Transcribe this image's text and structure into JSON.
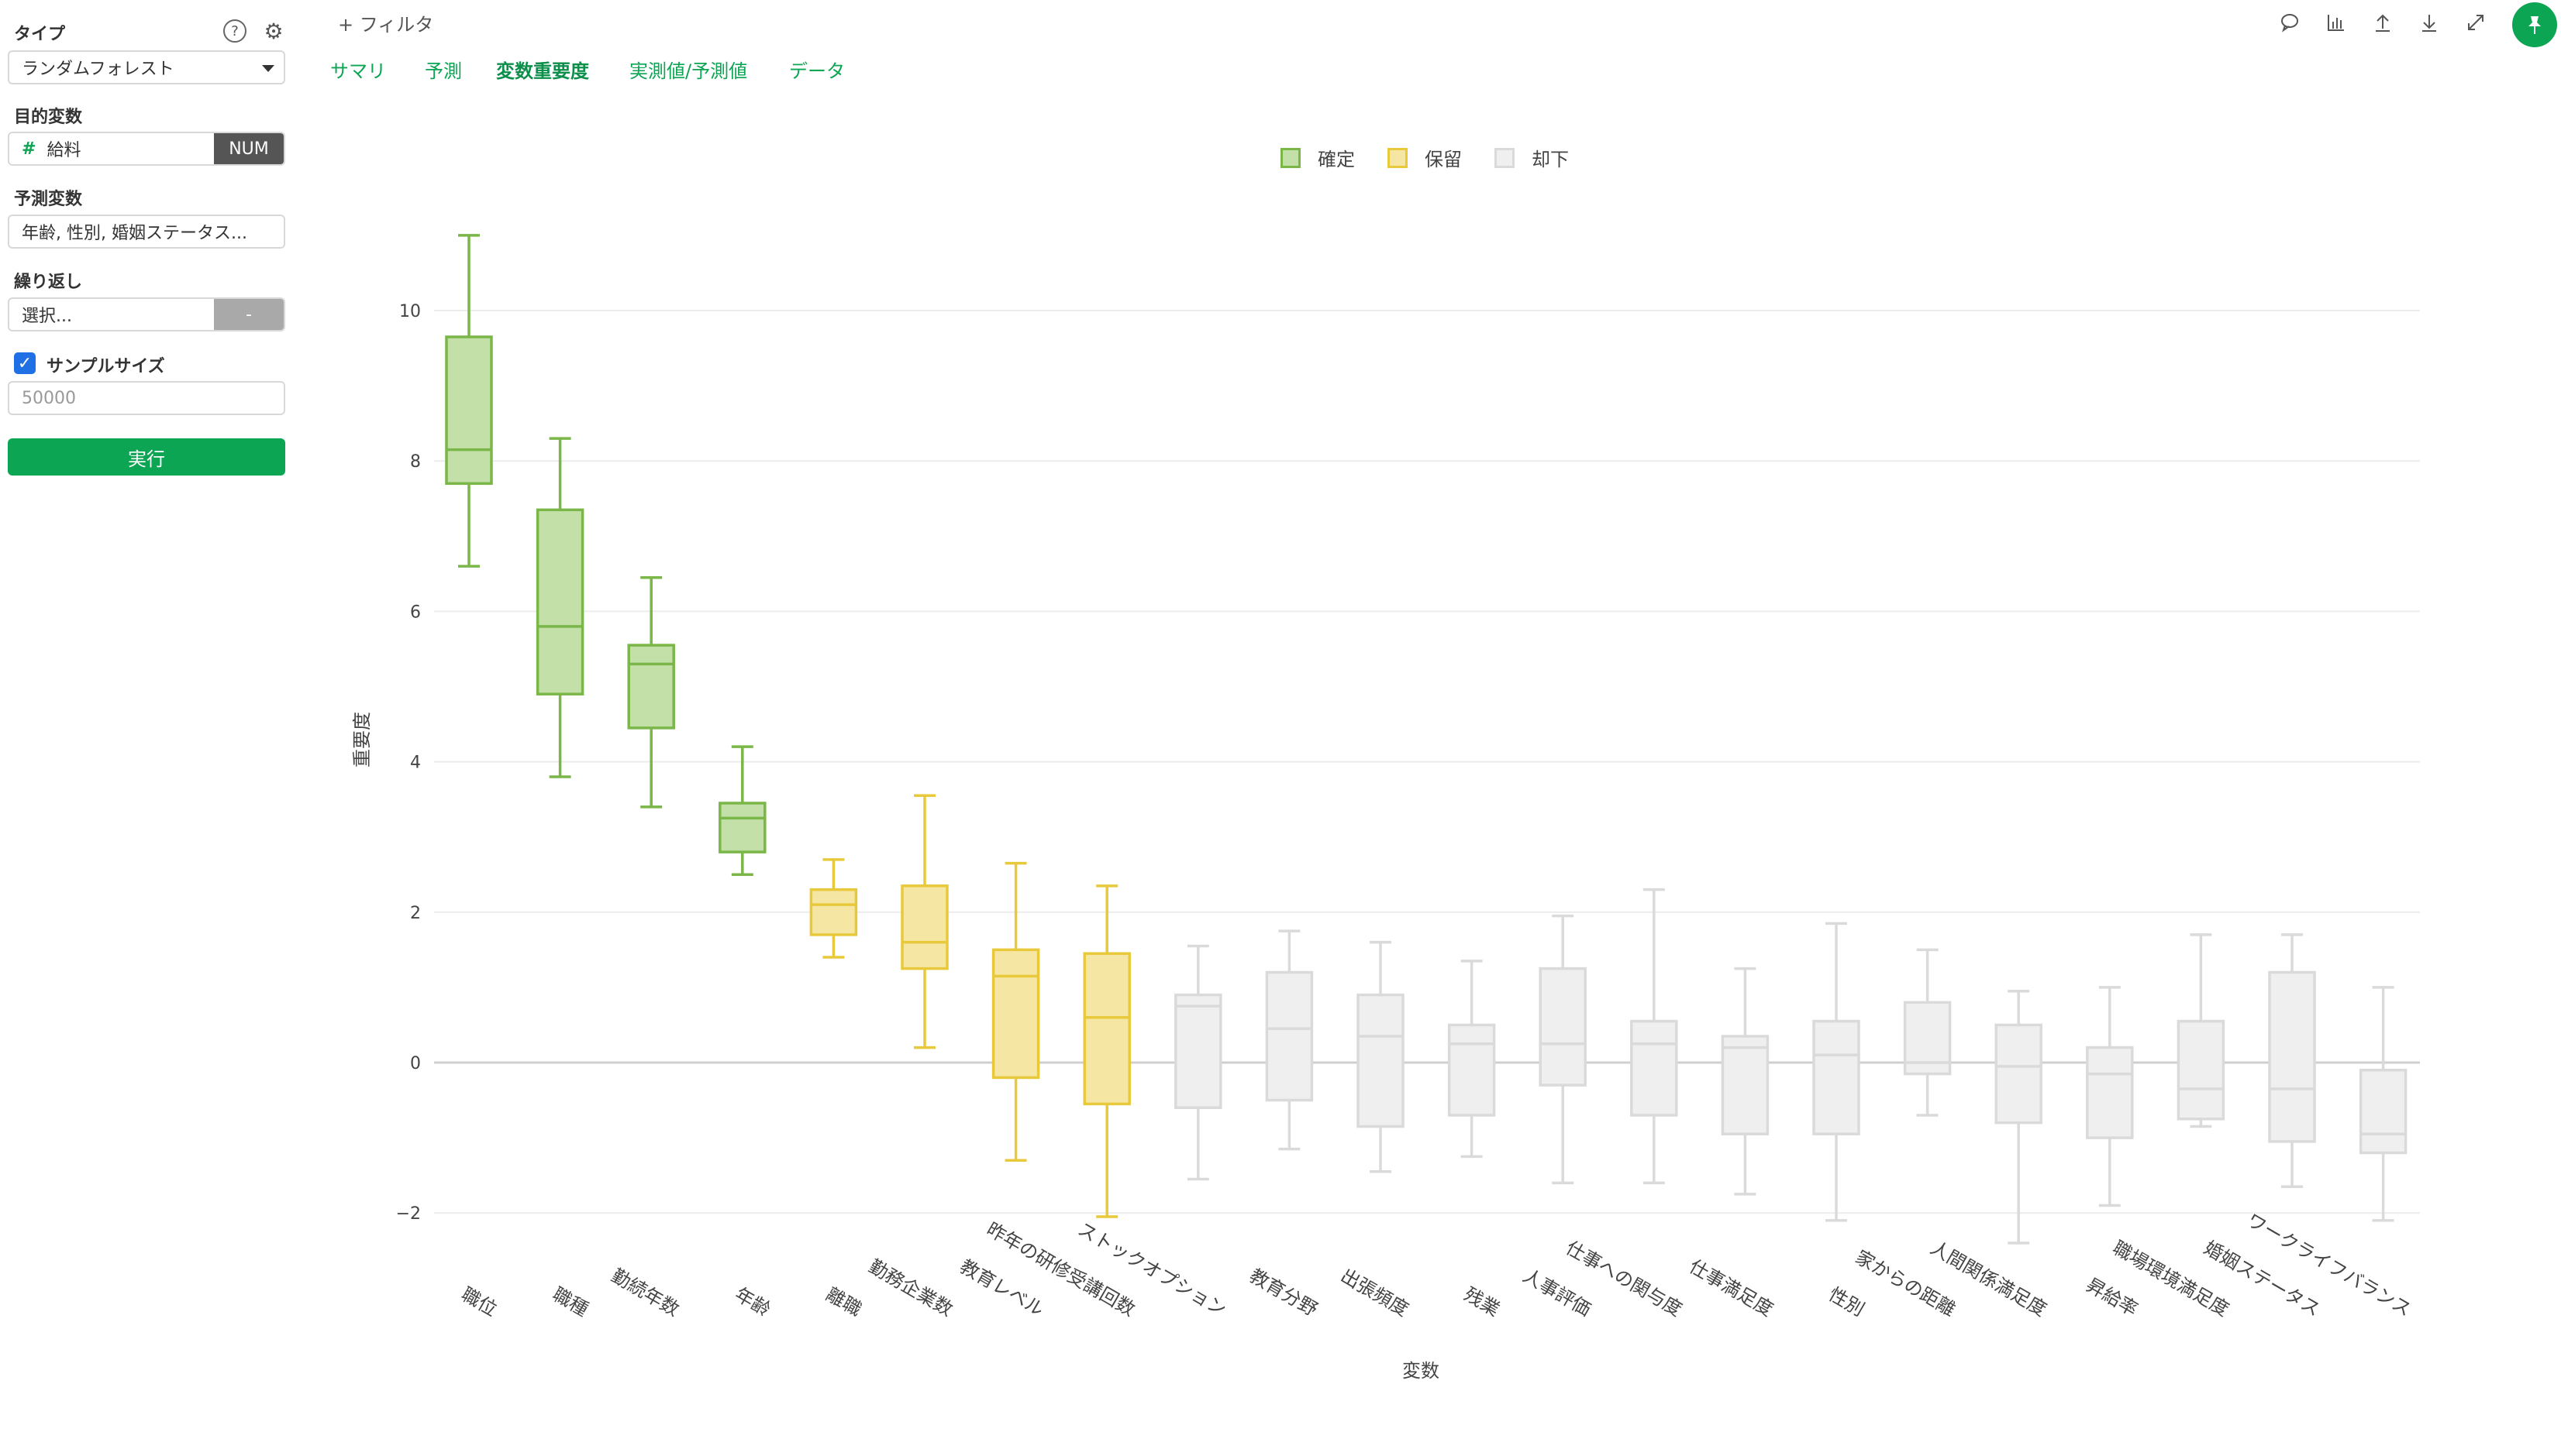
{
  "sidebar": {
    "type_label": "タイプ",
    "type_value": "ランダムフォレスト",
    "help_icon": "question-icon",
    "settings_icon": "gear-icon",
    "target_label": "目的変数",
    "target_hash": "#",
    "target_value": "給料",
    "target_tag": "NUM",
    "predictor_label": "予測変数",
    "predictor_value": "年齢, 性別, 婚姻ステータス...",
    "repeat_label": "繰り返し",
    "repeat_value": "選択...",
    "repeat_tag": "-",
    "sample_size_label": "サンプルサイズ",
    "sample_size_checked": "✓",
    "sample_size_value": "50000",
    "run_label": "実行"
  },
  "header": {
    "filter_label": "+ フィルタ",
    "tabs": [
      {
        "label": "サマリ"
      },
      {
        "label": "予測"
      },
      {
        "label": "変数重要度"
      },
      {
        "label": "実測値/予測値"
      },
      {
        "label": "データ"
      }
    ],
    "active_tab": "変数重要度",
    "toolbar_icons": [
      "comment-icon",
      "chart-icon",
      "upload-icon",
      "download-icon",
      "expand-icon",
      "pin-icon"
    ]
  },
  "chart_data": {
    "type": "box",
    "title": "",
    "xlabel": "変数",
    "ylabel": "重要度",
    "ylim": [
      -2.5,
      11.5
    ],
    "yticks": [
      -2,
      0,
      2,
      4,
      6,
      8,
      10
    ],
    "ytick_labels": [
      "−2",
      "0",
      "2",
      "4",
      "6",
      "8",
      "10"
    ],
    "grid": true,
    "legend_position": "top-center",
    "legend": [
      {
        "name": "確定",
        "color": "#7ab648",
        "fill": "#c3e0a8"
      },
      {
        "name": "保留",
        "color": "#e8c93c",
        "fill": "#f6e6a3"
      },
      {
        "name": "却下",
        "color": "#dadada",
        "fill": "#efefef"
      }
    ],
    "boxes": [
      {
        "category": "職位",
        "status": "確定",
        "min": 6.6,
        "q1": 7.7,
        "median": 8.15,
        "q3": 9.65,
        "max": 11.0
      },
      {
        "category": "職種",
        "status": "確定",
        "min": 3.8,
        "q1": 4.9,
        "median": 5.8,
        "q3": 7.35,
        "max": 8.3
      },
      {
        "category": "勤続年数",
        "status": "確定",
        "min": 3.4,
        "q1": 4.45,
        "median": 5.3,
        "q3": 5.55,
        "max": 6.45
      },
      {
        "category": "年齢",
        "status": "確定",
        "min": 2.5,
        "q1": 2.8,
        "median": 3.25,
        "q3": 3.45,
        "max": 4.2
      },
      {
        "category": "離職",
        "status": "保留",
        "min": 1.4,
        "q1": 1.7,
        "median": 2.1,
        "q3": 2.3,
        "max": 2.7
      },
      {
        "category": "勤務企業数",
        "status": "保留",
        "min": 0.2,
        "q1": 1.25,
        "median": 1.6,
        "q3": 2.35,
        "max": 3.55
      },
      {
        "category": "教育レベル",
        "status": "保留",
        "min": -1.3,
        "q1": -0.2,
        "median": 1.15,
        "q3": 1.5,
        "max": 2.65
      },
      {
        "category": "昨年の研修受講回数",
        "status": "保留",
        "min": -2.05,
        "q1": -0.55,
        "median": 0.6,
        "q3": 1.45,
        "max": 2.35
      },
      {
        "category": "ストックオプション",
        "status": "却下",
        "min": -1.55,
        "q1": -0.6,
        "median": 0.75,
        "q3": 0.9,
        "max": 1.55
      },
      {
        "category": "教育分野",
        "status": "却下",
        "min": -1.15,
        "q1": -0.5,
        "median": 0.45,
        "q3": 1.2,
        "max": 1.75
      },
      {
        "category": "出張頻度",
        "status": "却下",
        "min": -1.45,
        "q1": -0.85,
        "median": 0.35,
        "q3": 0.9,
        "max": 1.6
      },
      {
        "category": "残業",
        "status": "却下",
        "min": -1.25,
        "q1": -0.7,
        "median": 0.25,
        "q3": 0.5,
        "max": 1.35
      },
      {
        "category": "人事評価",
        "status": "却下",
        "min": -1.6,
        "q1": -0.3,
        "median": 0.25,
        "q3": 1.25,
        "max": 1.95
      },
      {
        "category": "仕事への関与度",
        "status": "却下",
        "min": -1.6,
        "q1": -0.7,
        "median": 0.25,
        "q3": 0.55,
        "max": 2.3
      },
      {
        "category": "仕事満足度",
        "status": "却下",
        "min": -1.75,
        "q1": -0.95,
        "median": 0.2,
        "q3": 0.35,
        "max": 1.25
      },
      {
        "category": "性別",
        "status": "却下",
        "min": -2.1,
        "q1": -0.95,
        "median": 0.1,
        "q3": 0.55,
        "max": 1.85
      },
      {
        "category": "家からの距離",
        "status": "却下",
        "min": -0.7,
        "q1": -0.15,
        "median": 0.0,
        "q3": 0.8,
        "max": 1.5
      },
      {
        "category": "人間関係満足度",
        "status": "却下",
        "min": -2.4,
        "q1": -0.8,
        "median": -0.05,
        "q3": 0.5,
        "max": 0.95
      },
      {
        "category": "昇給率",
        "status": "却下",
        "min": -1.9,
        "q1": -1.0,
        "median": -0.15,
        "q3": 0.2,
        "max": 1.0
      },
      {
        "category": "職場環境満足度",
        "status": "却下",
        "min": -0.85,
        "q1": -0.75,
        "median": -0.35,
        "q3": 0.55,
        "max": 1.7
      },
      {
        "category": "婚姻ステータス",
        "status": "却下",
        "min": -1.65,
        "q1": -1.05,
        "median": -0.35,
        "q3": 1.2,
        "max": 1.7
      },
      {
        "category": "ワークライフバランス",
        "status": "却下",
        "min": -2.1,
        "q1": -1.2,
        "median": -0.95,
        "q3": -0.1,
        "max": 1.0
      }
    ]
  }
}
